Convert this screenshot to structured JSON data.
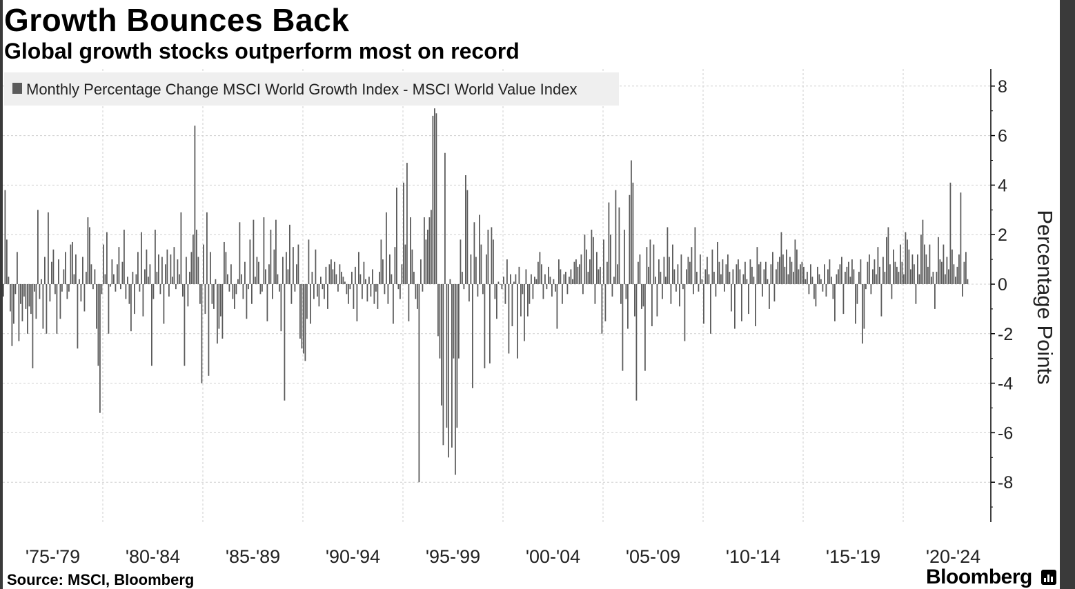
{
  "header": {
    "title": "Growth Bounces Back",
    "subtitle": "Global growth stocks outperform most on record"
  },
  "footer": {
    "source": "Source: MSCI, Bloomberg",
    "brand": "Bloomberg"
  },
  "colors": {
    "bar": "#5b5b5b",
    "grid": "#cfcfcf",
    "legend_bg": "#efefef"
  },
  "chart_data": {
    "type": "bar",
    "title": "Growth Bounces Back",
    "subtitle": "Global growth stocks outperform most on record",
    "ylabel": "Percentage Points",
    "legend_position": "top-left",
    "ylim": [
      -9.5,
      8.7
    ],
    "yticks": [
      8,
      6,
      4,
      2,
      0,
      -2,
      -4,
      -6,
      -8
    ],
    "grid": true,
    "x_start_year": 1975,
    "x_end_year": 2024,
    "x_tick_labels": [
      "'75-'79",
      "'80-'84",
      "'85-'89",
      "'90-'94",
      "'95-'99",
      "'00-'04",
      "'05-'09",
      "'10-'14",
      "'15-'19",
      "'20-'24"
    ],
    "series": [
      {
        "name": "Monthly Percentage Change MSCI World Growth Index - MSCI World Value  Index",
        "values": [
          -0.5,
          3.8,
          1.8,
          0.3,
          -1.1,
          -2.5,
          -1.6,
          -0.4,
          1.3,
          -2.3,
          -0.8,
          -1.5,
          -0.5,
          -1.0,
          -2.0,
          -0.9,
          -1.2,
          -3.4,
          -0.3,
          -1.4,
          3.0,
          -0.6,
          0.2,
          -1.8,
          1.1,
          -2.0,
          2.9,
          -0.7,
          0.9,
          1.4,
          -0.4,
          -2.0,
          1.0,
          -1.4,
          -0.3,
          0.6,
          1.3,
          -0.6,
          -0.3,
          1.6,
          1.7,
          0.4,
          1.2,
          -2.6,
          0.2,
          -0.7,
          1.1,
          -1.1,
          0.5,
          2.7,
          2.3,
          0.8,
          -0.2,
          0.6,
          -1.8,
          -3.3,
          -5.2,
          -0.4,
          1.6,
          0.4,
          2.1,
          -2.0,
          -0.1,
          1.0,
          0.4,
          -0.3,
          0.8,
          1.5,
          -0.2,
          0.9,
          2.2,
          -0.6,
          0.3,
          -0.8,
          -1.9,
          0.5,
          -1.2,
          0.4,
          1.3,
          -0.3,
          2.1,
          -1.3,
          0.6,
          1.4,
          0.3,
          0.8,
          -3.3,
          -0.6,
          2.2,
          0.5,
          1.2,
          -0.4,
          1.1,
          -1.6,
          0.8,
          1.4,
          -0.5,
          1.2,
          0.3,
          1.5,
          -0.2,
          1.0,
          0.4,
          2.9,
          -0.5,
          -3.3,
          1.1,
          -0.9,
          0.5,
          1.3,
          2.0,
          6.4,
          2.2,
          1.1,
          -0.8,
          -4.0,
          1.6,
          -1.2,
          2.9,
          -3.7,
          1.3,
          -0.8,
          -1.0,
          0.2,
          -2.4,
          -1.8,
          -1.3,
          -2.2,
          1.7,
          1.3,
          0.4,
          -0.3,
          0.8,
          -0.6,
          -1.0,
          -0.4,
          0.2,
          2.5,
          0.4,
          -0.6,
          0.9,
          -1.4,
          -0.2,
          1.8,
          -0.8,
          2.6,
          0.3,
          1.1,
          0.9,
          -0.4,
          -0.3,
          2.7,
          0.6,
          -1.5,
          0.8,
          2.2,
          -0.6,
          1.4,
          2.6,
          0.4,
          -0.3,
          -1.9,
          1.1,
          -4.7,
          1.3,
          0.6,
          2.4,
          -0.8,
          1.5,
          -0.3,
          0.8,
          1.6,
          -2.2,
          -2.6,
          -2.8,
          -3.1,
          -1.4,
          1.8,
          -1.6,
          0.5,
          -0.6,
          1.4,
          -0.5,
          -0.9,
          0.3,
          -0.2,
          -0.6,
          0.7,
          -1.0,
          0.8,
          1.0,
          0.6,
          0.9,
          0.4,
          -0.3,
          0.8,
          0.5,
          0.3,
          0.1,
          -0.4,
          -0.8,
          -0.2,
          0.5,
          -1.0,
          0.7,
          -1.5,
          1.3,
          0.4,
          -0.6,
          0.9,
          0.2,
          -0.7,
          0.3,
          -0.5,
          0.6,
          -0.8,
          -0.3,
          -1.0,
          0.5,
          1.8,
          1.0,
          -0.4,
          2.9,
          -0.8,
          1.2,
          0.4,
          -1.6,
          1.5,
          3.9,
          -0.2,
          -0.6,
          0.8,
          4.1,
          1.6,
          4.9,
          -1.5,
          2.7,
          1.4,
          0.5,
          -0.6,
          -1.0,
          -8.0,
          1.0,
          -0.3,
          2.7,
          1.8,
          2.2,
          2.7,
          3.0,
          6.8,
          7.1,
          6.9,
          -2.1,
          -3.0,
          -4.9,
          -6.5,
          5.3,
          -5.8,
          -7.0,
          0.2,
          -6.6,
          -3.0,
          -7.7,
          -5.8,
          -3.0,
          1.8,
          0.5,
          -0.2,
          4.4,
          3.8,
          -0.7,
          1.2,
          -4.2,
          2.5,
          1.1,
          -0.5,
          2.8,
          1.6,
          -0.4,
          -3.4,
          1.2,
          2.2,
          -3.2,
          2.3,
          1.8,
          -0.6,
          -1.4,
          0.1,
          0.0,
          -0.2,
          0.3,
          -0.8,
          1.0,
          -2.8,
          0.4,
          -1.7,
          0.1,
          0.4,
          -3.0,
          0.7,
          -1.3,
          -0.4,
          -2.3,
          0.6,
          -1.3,
          -0.8,
          0.4,
          -0.6,
          0.3,
          0.2,
          0.9,
          1.3,
          0.8,
          -0.6,
          0.4,
          -0.2,
          0.7,
          0.3,
          -0.5,
          0.2,
          -0.3,
          -1.8,
          1.0,
          0.6,
          -0.8,
          0.4,
          0.5,
          -0.4,
          0.3,
          0.6,
          0.2,
          0.9,
          1.0,
          0.7,
          0.8,
          1.2,
          -0.4,
          2.0,
          1.4,
          0.5,
          1.0,
          2.2,
          1.9,
          -0.8,
          1.3,
          0.6,
          0.7,
          -2.0,
          1.8,
          -1.5,
          0.9,
          3.3,
          2.0,
          -0.5,
          0.3,
          3.8,
          0.8,
          3.1,
          -0.8,
          -3.5,
          2.2,
          -0.6,
          -1.8,
          3.6,
          5.0,
          4.1,
          -1.3,
          -4.7,
          0.9,
          1.2,
          -1.0,
          -0.9,
          -3.5,
          1.5,
          0.7,
          1.8,
          -1.7,
          1.6,
          0.3,
          -1.3,
          1.0,
          0.5,
          -0.6,
          1.1,
          0.3,
          2.3,
          1.1,
          -0.8,
          1.6,
          0.6,
          -0.3,
          0.8,
          -0.9,
          1.2,
          -0.2,
          -2.3,
          0.6,
          1.1,
          0.9,
          1.5,
          -0.4,
          2.3,
          0.5,
          -0.3,
          1.2,
          0.2,
          -1.6,
          0.6,
          1.1,
          0.4,
          -2.0,
          1.4,
          0.5,
          -0.5,
          1.7,
          0.9,
          0.4,
          1.0,
          -0.3,
          0.8,
          1.2,
          0.5,
          -1.1,
          0.6,
          -1.8,
          0.8,
          1.0,
          0.6,
          -1.5,
          0.4,
          0.9,
          0.2,
          -1.2,
          1.0,
          0.7,
          0.3,
          -1.7,
          1.5,
          0.8,
          0.9,
          -0.5,
          0.6,
          0.9,
          0.2,
          -1.0,
          0.8,
          1.3,
          -0.7,
          0.6,
          0.9,
          1.1,
          2.1,
          1.2,
          0.7,
          1.4,
          0.4,
          1.1,
          0.9,
          0.5,
          1.8,
          1.4,
          0.6,
          0.8,
          0.9,
          0.7,
          0.2,
          0.5,
          -0.4,
          0.8,
          0.3,
          -0.6,
          -0.9,
          0.7,
          0.4,
          0.2,
          -0.3,
          0.8,
          -0.5,
          0.6,
          1.0,
          0.3,
          -0.6,
          -1.5,
          0.4,
          0.6,
          0.8,
          1.1,
          -1.2,
          0.5,
          0.7,
          0.9,
          0.3,
          1.0,
          0.6,
          -1.6,
          -0.8,
          0.5,
          1.0,
          -2.4,
          -1.8,
          -0.2,
          0.9,
          1.2,
          -0.4,
          0.6,
          1.0,
          0.4,
          1.5,
          0.7,
          -1.3,
          1.1,
          0.5,
          1.9,
          2.3,
          0.8,
          -0.6,
          1.4,
          0.9,
          0.7,
          0.5,
          1.6,
          0.9,
          0.4,
          2.1,
          1.8,
          1.4,
          0.6,
          1.2,
          0.8,
          -0.8,
          1.2,
          0.4,
          2.0,
          2.6,
          1.6,
          1.2,
          0.7,
          1.6,
          0.3,
          0.5,
          -1.0,
          0.5,
          1.9,
          1.0,
          0.9,
          1.6,
          0.4,
          1.1,
          0.6,
          4.1,
          1.4,
          0.8,
          0.3,
          0.7,
          1.2,
          3.7,
          -0.5,
          0.9,
          1.3,
          0.2
        ]
      }
    ]
  }
}
